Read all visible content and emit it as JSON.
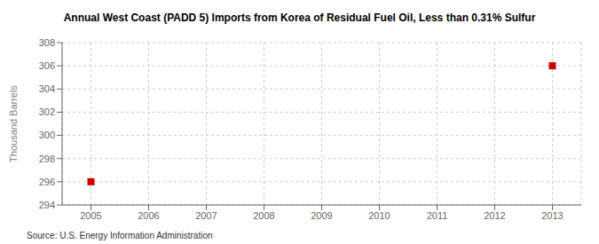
{
  "chart_data": {
    "type": "scatter",
    "title": "Annual West Coast (PADD 5) Imports from Korea of Residual Fuel Oil, Less than 0.31% Sulfur",
    "ylabel": "Thousand Barrels",
    "annotations": [
      "Source: U.S. Energy Information Administration"
    ],
    "x": [
      2005,
      2013
    ],
    "values": [
      296,
      306
    ],
    "color": "#cc0000",
    "marker": "square",
    "xlim": [
      2004.5,
      2013.5
    ],
    "ylim": [
      294,
      308
    ],
    "xticks": [
      2005,
      2006,
      2007,
      2008,
      2009,
      2010,
      2011,
      2012,
      2013
    ],
    "yticks": [
      294,
      296,
      298,
      300,
      302,
      304,
      306,
      308
    ],
    "grid": true
  }
}
